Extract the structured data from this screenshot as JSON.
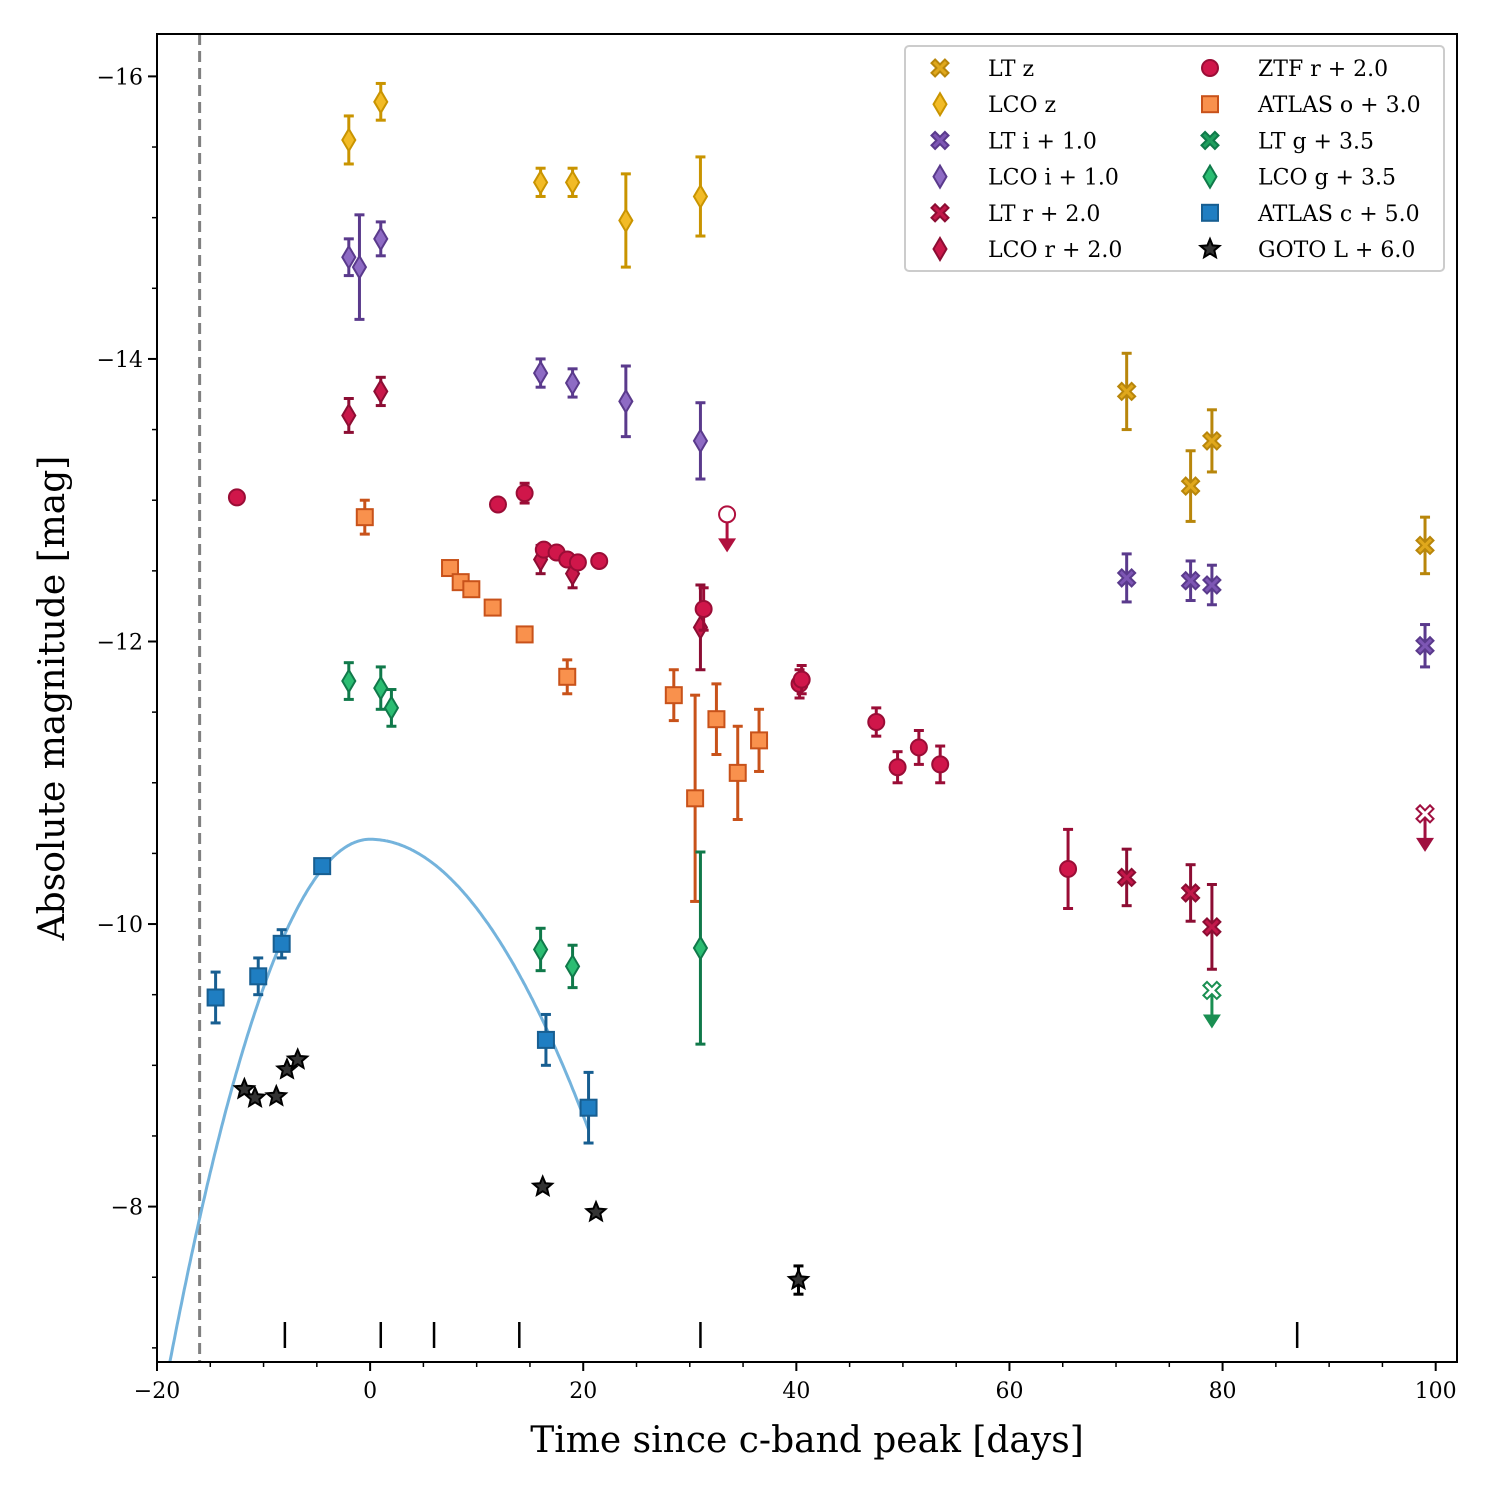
{
  "chart_data": {
    "type": "scatter",
    "title": "",
    "xlabel": "Time since c-band peak [days]",
    "ylabel": "Absolute magnitude [mag]",
    "xlim": [
      -20,
      102
    ],
    "ylim": [
      -6.9,
      -16.3
    ],
    "xticks": [
      -20,
      0,
      20,
      40,
      60,
      80,
      100
    ],
    "xtick_labels": [
      "−20",
      "0",
      "20",
      "40",
      "60",
      "80",
      "100"
    ],
    "yticks": [
      -16,
      -14,
      -12,
      -10,
      -8
    ],
    "ytick_labels": [
      "−16",
      "−14",
      "−12",
      "−10",
      "−8"
    ],
    "explosion_epoch": -16,
    "spectra_epochs": [
      -8,
      1,
      6,
      14,
      31,
      87
    ],
    "model_curve": {
      "color": "#74b3dc",
      "peak_x": 0,
      "peak_y": -10.6
    },
    "legend": [
      {
        "label": "LT z",
        "marker": "x",
        "color": "#e0a81c",
        "edge": "#b8860b"
      },
      {
        "label": "LCO z",
        "marker": "diamond",
        "color": "#f2bb26",
        "edge": "#c99400"
      },
      {
        "label": "LT i + 1.0",
        "marker": "x",
        "color": "#7d56b4",
        "edge": "#5a3a8c"
      },
      {
        "label": "LCO i + 1.0",
        "marker": "diamond",
        "color": "#8e6bc4",
        "edge": "#5a3a8c"
      },
      {
        "label": "LT r + 2.0",
        "marker": "x",
        "color": "#c2184a",
        "edge": "#8c0d33"
      },
      {
        "label": "LCO r + 2.0",
        "marker": "diamond",
        "color": "#c9184a",
        "edge": "#8c0d33"
      },
      {
        "label": "ZTF r + 2.0",
        "marker": "circle",
        "color": "#d0164a",
        "edge": "#9a0d36"
      },
      {
        "label": "ATLAS o + 3.0",
        "marker": "square",
        "color": "#f9914d",
        "edge": "#c8521a"
      },
      {
        "label": "LT g + 3.5",
        "marker": "x",
        "color": "#1f9e5e",
        "edge": "#10794a"
      },
      {
        "label": "LCO g + 3.5",
        "marker": "diamond",
        "color": "#2bbd72",
        "edge": "#10794a"
      },
      {
        "label": "ATLAS c + 5.0",
        "marker": "square",
        "color": "#1f7ec2",
        "edge": "#175e91"
      },
      {
        "label": "GOTO L + 6.0",
        "marker": "star",
        "color": "#333333",
        "edge": "#000000"
      }
    ],
    "series": [
      {
        "name": "LT z",
        "marker": "x",
        "color": "#e0a81c",
        "edge": "#b8860b",
        "points": [
          [
            71,
            -13.77,
            0.27
          ],
          [
            77,
            -13.1,
            0.25
          ],
          [
            79,
            -13.42,
            0.22
          ],
          [
            99,
            -12.68,
            0.2
          ]
        ]
      },
      {
        "name": "LCO z",
        "marker": "diamond",
        "color": "#f2bb26",
        "edge": "#c99400",
        "points": [
          [
            -2,
            -15.55,
            0.17
          ],
          [
            1,
            -15.82,
            0.13
          ],
          [
            16,
            -15.25,
            0.1
          ],
          [
            19,
            -15.25,
            0.1
          ],
          [
            24,
            -14.98,
            0.33
          ],
          [
            31,
            -15.15,
            0.28
          ]
        ]
      },
      {
        "name": "LT i + 1.0",
        "marker": "x",
        "color": "#7d56b4",
        "edge": "#5a3a8c",
        "points": [
          [
            71,
            -12.45,
            0.17
          ],
          [
            77,
            -12.43,
            0.14
          ],
          [
            79,
            -12.4,
            0.14
          ],
          [
            99,
            -11.97,
            0.15
          ]
        ]
      },
      {
        "name": "LCO i + 1.0",
        "marker": "diamond",
        "color": "#8e6bc4",
        "edge": "#5a3a8c",
        "points": [
          [
            -2,
            -14.72,
            0.13
          ],
          [
            -1,
            -14.65,
            0.37
          ],
          [
            1,
            -14.85,
            0.12
          ],
          [
            16,
            -13.9,
            0.1
          ],
          [
            19,
            -13.83,
            0.1
          ],
          [
            24,
            -13.7,
            0.25
          ],
          [
            31,
            -13.42,
            0.27
          ]
        ]
      },
      {
        "name": "LT r + 2.0",
        "marker": "x",
        "color": "#c2184a",
        "edge": "#8c0d33",
        "points": [
          [
            71,
            -10.33,
            0.2
          ],
          [
            77,
            -10.22,
            0.2
          ],
          [
            79,
            -9.98,
            0.3
          ]
        ]
      },
      {
        "name": "LCO r + 2.0",
        "marker": "diamond",
        "color": "#c9184a",
        "edge": "#8c0d33",
        "points": [
          [
            -2,
            -13.6,
            0.12
          ],
          [
            1,
            -13.77,
            0.1
          ],
          [
            16,
            -12.58,
            0.1
          ],
          [
            19,
            -12.48,
            0.1
          ],
          [
            31,
            -12.1,
            0.3
          ]
        ]
      },
      {
        "name": "ZTF r + 2.0",
        "marker": "circle",
        "color": "#d0164a",
        "edge": "#9a0d36",
        "points": [
          [
            -12.5,
            -13.02,
            0
          ],
          [
            12,
            -12.97,
            0
          ],
          [
            14.5,
            -13.05,
            0.07
          ],
          [
            16.3,
            -12.65,
            0
          ],
          [
            17.5,
            -12.63,
            0
          ],
          [
            18.5,
            -12.58,
            0
          ],
          [
            19.5,
            -12.56,
            0
          ],
          [
            21.5,
            -12.57,
            0
          ],
          [
            31.3,
            -12.23,
            0.15
          ],
          [
            40.3,
            -11.7,
            0.1
          ],
          [
            40.5,
            -11.73,
            0.1
          ],
          [
            47.5,
            -11.43,
            0.1
          ],
          [
            49.5,
            -11.11,
            0.11
          ],
          [
            51.5,
            -11.25,
            0.12
          ],
          [
            53.5,
            -11.13,
            0.13
          ],
          [
            65.5,
            -10.39,
            0.28
          ]
        ]
      },
      {
        "name": "ATLAS o + 3.0",
        "marker": "square",
        "color": "#f9914d",
        "edge": "#c8521a",
        "points": [
          [
            -0.5,
            -12.88,
            0.12
          ],
          [
            7.5,
            -12.52,
            0
          ],
          [
            8.5,
            -12.42,
            0
          ],
          [
            9.5,
            -12.37,
            0
          ],
          [
            11.5,
            -12.24,
            0
          ],
          [
            14.5,
            -12.05,
            0
          ],
          [
            18.5,
            -11.75,
            0.12
          ],
          [
            28.5,
            -11.62,
            0.18
          ],
          [
            30.5,
            -10.89,
            0.73
          ],
          [
            32.5,
            -11.45,
            0.25
          ],
          [
            34.5,
            -11.07,
            0.33
          ],
          [
            36.5,
            -11.3,
            0.22
          ]
        ]
      },
      {
        "name": "LT g + 3.5",
        "marker": "x",
        "color": "#1f9e5e",
        "edge": "#10794a",
        "points": []
      },
      {
        "name": "LCO g + 3.5",
        "marker": "diamond",
        "color": "#2bbd72",
        "edge": "#10794a",
        "points": [
          [
            -2,
            -11.72,
            0.13
          ],
          [
            1,
            -11.67,
            0.15
          ],
          [
            2,
            -11.53,
            0.13
          ],
          [
            16,
            -9.82,
            0.15
          ],
          [
            19,
            -9.7,
            0.15
          ],
          [
            31,
            -9.83,
            0.68
          ]
        ]
      },
      {
        "name": "ATLAS c + 5.0",
        "marker": "square",
        "color": "#1f7ec2",
        "edge": "#175e91",
        "points": [
          [
            -14.5,
            -9.48,
            0.18
          ],
          [
            -10.5,
            -9.63,
            0.13
          ],
          [
            -8.3,
            -9.86,
            0.1
          ],
          [
            -4.5,
            -10.41,
            0
          ],
          [
            16.5,
            -9.18,
            0.18
          ],
          [
            20.5,
            -8.7,
            0.25
          ]
        ]
      },
      {
        "name": "GOTO L + 6.0",
        "marker": "star",
        "color": "#333333",
        "edge": "#000000",
        "points": [
          [
            -11.8,
            -8.83,
            0
          ],
          [
            -10.8,
            -8.77,
            0
          ],
          [
            -8.8,
            -8.78,
            0
          ],
          [
            -7.8,
            -8.97,
            0
          ],
          [
            -6.8,
            -9.04,
            0
          ],
          [
            16.2,
            -8.14,
            0
          ],
          [
            21.2,
            -7.96,
            0
          ],
          [
            40.2,
            -7.48,
            0.1
          ]
        ]
      }
    ],
    "upper_limits": [
      {
        "name": "ZTF r + 2.0",
        "marker": "circle",
        "color": "#b0103e",
        "x": 33.5,
        "y": -12.9
      },
      {
        "name": "LT r + 2.0",
        "marker": "x",
        "color": "#a01040",
        "x": 99,
        "y": -10.78
      },
      {
        "name": "LT g + 3.5",
        "marker": "x",
        "color": "#1a8f52",
        "x": 79,
        "y": -9.53
      }
    ]
  }
}
